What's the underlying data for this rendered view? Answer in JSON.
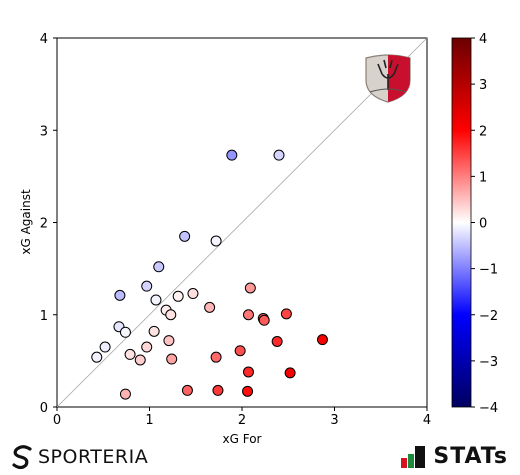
{
  "chart_data": {
    "type": "scatter",
    "title": "",
    "xlabel": "xG For",
    "ylabel": "xG Against",
    "xlim": [
      0,
      4
    ],
    "ylim": [
      0,
      4
    ],
    "xticks": [
      "0",
      "1",
      "2",
      "3",
      "4"
    ],
    "yticks": [
      "0",
      "1",
      "2",
      "3",
      "4"
    ],
    "grid": false,
    "diagonal_line": true,
    "color_value": "xG For minus xG Against",
    "colorbar": {
      "min": -4,
      "max": 4,
      "ticks": [
        "4",
        "3",
        "2",
        "1",
        "0",
        "−1",
        "−2",
        "−3",
        "−4"
      ],
      "colors": {
        "low": "#000060",
        "mid_low": "#0000ff",
        "mid": "#ffffff",
        "mid_high": "#ff0000",
        "high": "#6b0000"
      }
    },
    "points": [
      {
        "x": 1.89,
        "y": 2.73
      },
      {
        "x": 2.4,
        "y": 2.73
      },
      {
        "x": 1.38,
        "y": 1.85
      },
      {
        "x": 1.72,
        "y": 1.8
      },
      {
        "x": 1.1,
        "y": 1.52
      },
      {
        "x": 0.68,
        "y": 1.21
      },
      {
        "x": 0.97,
        "y": 1.31
      },
      {
        "x": 1.07,
        "y": 1.16
      },
      {
        "x": 1.31,
        "y": 1.2
      },
      {
        "x": 1.47,
        "y": 1.23
      },
      {
        "x": 1.18,
        "y": 1.05
      },
      {
        "x": 1.23,
        "y": 1.0
      },
      {
        "x": 0.67,
        "y": 0.87
      },
      {
        "x": 0.74,
        "y": 0.81
      },
      {
        "x": 1.05,
        "y": 0.82
      },
      {
        "x": 0.52,
        "y": 0.65
      },
      {
        "x": 0.43,
        "y": 0.54
      },
      {
        "x": 0.79,
        "y": 0.57
      },
      {
        "x": 0.9,
        "y": 0.51
      },
      {
        "x": 0.97,
        "y": 0.65
      },
      {
        "x": 1.21,
        "y": 0.72
      },
      {
        "x": 1.24,
        "y": 0.52
      },
      {
        "x": 1.65,
        "y": 1.08
      },
      {
        "x": 2.09,
        "y": 1.29
      },
      {
        "x": 2.07,
        "y": 1.0
      },
      {
        "x": 2.23,
        "y": 0.96
      },
      {
        "x": 2.24,
        "y": 0.94
      },
      {
        "x": 2.48,
        "y": 1.01
      },
      {
        "x": 2.87,
        "y": 0.73
      },
      {
        "x": 2.38,
        "y": 0.71
      },
      {
        "x": 1.98,
        "y": 0.61
      },
      {
        "x": 1.72,
        "y": 0.54
      },
      {
        "x": 2.07,
        "y": 0.38
      },
      {
        "x": 2.52,
        "y": 0.37
      },
      {
        "x": 1.41,
        "y": 0.18
      },
      {
        "x": 1.74,
        "y": 0.18
      },
      {
        "x": 2.06,
        "y": 0.17
      },
      {
        "x": 0.74,
        "y": 0.14
      }
    ]
  },
  "branding": {
    "left_text": "SPORTERIA",
    "right_text": "STATs",
    "colors": {
      "dark": "#111111",
      "red": "#d4151f",
      "green": "#1a8a3c",
      "crest_red": "#c8102e",
      "crest_grey": "#8a8078"
    }
  }
}
